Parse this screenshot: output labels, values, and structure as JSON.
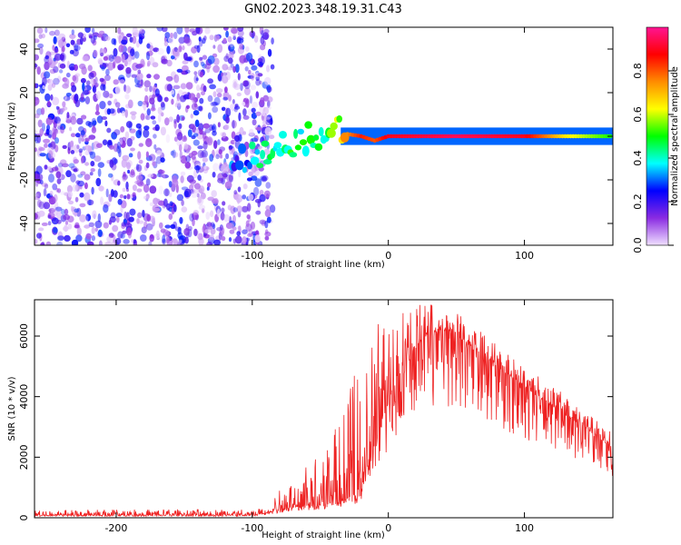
{
  "title": "GN02.2023.348.19.31.C43",
  "chart_data": [
    {
      "type": "heatmap",
      "xlabel": "Height of straight line (km)",
      "ylabel": "Frequency (Hz)",
      "xlim": [
        -260,
        165
      ],
      "ylim": [
        -50,
        50
      ],
      "x_ticks": [
        -200,
        -100,
        0,
        100
      ],
      "y_ticks": [
        -40,
        -20,
        0,
        20,
        40
      ],
      "colorbar": {
        "label": "Normalized spectral amplitude",
        "range": [
          0,
          1
        ],
        "ticks": [
          0.0,
          0.2,
          0.4,
          0.6,
          0.8
        ],
        "colormap": [
          "#f0e0ff",
          "#8a2be2",
          "#0000ff",
          "#00ffff",
          "#00ff00",
          "#ffff00",
          "#ff8c00",
          "#ff0000",
          "#ff1493"
        ]
      },
      "features": {
        "noise_region_x": [
          -260,
          -100
        ],
        "signal_band_freq_hz": 0,
        "signal_band_x": [
          -35,
          165
        ]
      },
      "track": [
        {
          "x": -115,
          "y": -12,
          "a": 0.25
        },
        {
          "x": -100,
          "y": -10,
          "a": 0.35
        },
        {
          "x": -85,
          "y": -5,
          "a": 0.4
        },
        {
          "x": -70,
          "y": -3,
          "a": 0.45
        },
        {
          "x": -55,
          "y": 0,
          "a": 0.45
        },
        {
          "x": -40,
          "y": 3,
          "a": 0.5
        },
        {
          "x": -30,
          "y": 1,
          "a": 0.75
        },
        {
          "x": -20,
          "y": 0,
          "a": 0.85
        },
        {
          "x": -10,
          "y": -2,
          "a": 0.8
        },
        {
          "x": 0,
          "y": 0,
          "a": 0.9
        },
        {
          "x": 50,
          "y": 0,
          "a": 0.95
        },
        {
          "x": 100,
          "y": 0,
          "a": 0.9
        },
        {
          "x": 130,
          "y": 0,
          "a": 0.65
        },
        {
          "x": 165,
          "y": 0,
          "a": 0.5
        }
      ]
    },
    {
      "type": "line",
      "xlabel": "Height of straight line (km)",
      "ylabel": "SNR (10 * v/v)",
      "xlim": [
        -260,
        165
      ],
      "ylim": [
        0,
        7200
      ],
      "x_ticks": [
        -200,
        -100,
        0,
        100
      ],
      "y_ticks": [
        0,
        2000,
        4000,
        6000
      ],
      "color": "#ee2222",
      "envelope": {
        "x": [
          -260,
          -100,
          -90,
          -80,
          -70,
          -60,
          -50,
          -40,
          -30,
          -20,
          -10,
          0,
          10,
          20,
          30,
          40,
          50,
          60,
          80,
          100,
          120,
          140,
          165
        ],
        "baseline": [
          80,
          80,
          150,
          250,
          350,
          400,
          450,
          500,
          600,
          900,
          2200,
          3800,
          5000,
          5600,
          6100,
          6200,
          6000,
          5700,
          5000,
          4300,
          3700,
          3100,
          2300
        ],
        "peak": [
          250,
          300,
          400,
          900,
          1300,
          1800,
          2200,
          3000,
          4000,
          5500,
          6600,
          6900,
          7000,
          7000,
          7100,
          7000,
          6800,
          6500,
          5800,
          5000,
          4400,
          3700,
          2800
        ]
      }
    }
  ]
}
